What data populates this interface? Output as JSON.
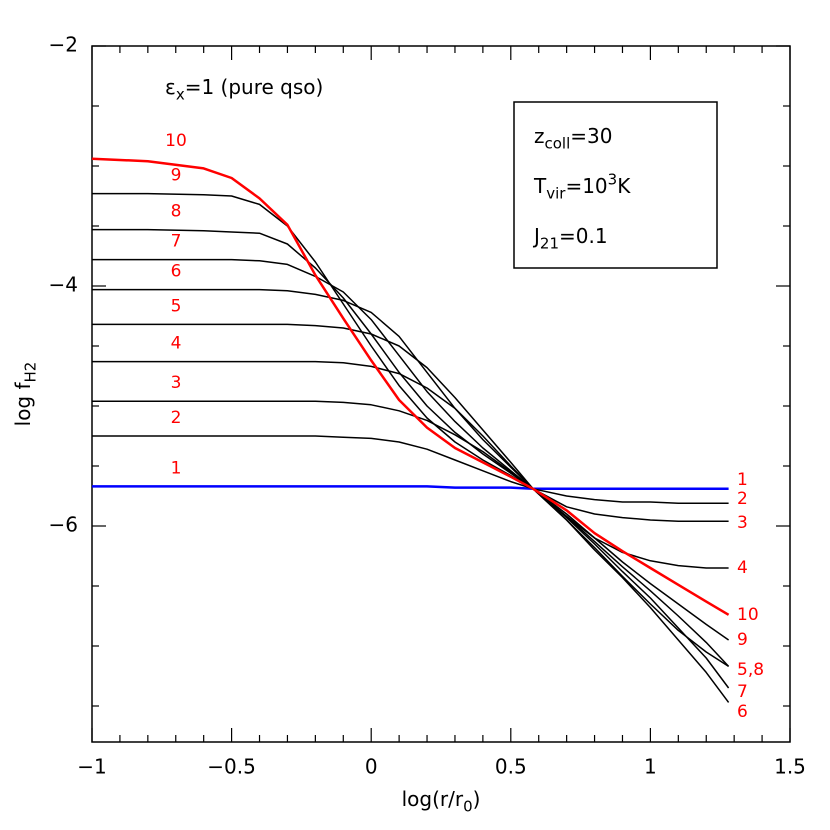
{
  "chart_data": {
    "type": "line",
    "annotation": {
      "base": "ε",
      "sub": "x",
      "tail": "=1 (pure qso)"
    },
    "info_box": [
      {
        "base": "z",
        "sub": "coll",
        "tail": "=30"
      },
      {
        "base": "T",
        "sub": "vir",
        "tail": "=10",
        "sup": "3",
        "end": "K"
      },
      {
        "base": "J",
        "sub": "21",
        "tail": "=0.1"
      }
    ],
    "xlabel": {
      "base": "log(r/r",
      "sub": "0",
      "tail": ")"
    },
    "ylabel": {
      "base": "log f",
      "sub": "H2"
    },
    "xlim": [
      -1,
      1.5
    ],
    "ylim": [
      -7.8,
      -2
    ],
    "xticks": [
      {
        "value": -1,
        "label": "−1"
      },
      {
        "value": -0.5,
        "label": "−0.5"
      },
      0,
      0.5,
      1,
      1.5
    ],
    "yticks": [
      {
        "value": -2,
        "label": "−2"
      },
      {
        "value": -4,
        "label": "−4"
      },
      {
        "value": -6,
        "label": "−6"
      }
    ],
    "xminor_ticks": [
      -0.9,
      -0.8,
      -0.7,
      -0.6,
      -0.4,
      -0.3,
      -0.2,
      -0.1,
      0.1,
      0.2,
      0.3,
      0.4,
      0.6,
      0.7,
      0.8,
      0.9,
      1.1,
      1.2,
      1.3,
      1.4
    ],
    "yminor_ticks": [
      -2.5,
      -3,
      -3.5,
      -4.5,
      -5,
      -5.5,
      -6.5,
      -7,
      -7.5
    ],
    "x": [
      -1,
      -0.8,
      -0.6,
      -0.5,
      -0.4,
      -0.3,
      -0.2,
      -0.1,
      0,
      0.1,
      0.2,
      0.3,
      0.4,
      0.5,
      0.58,
      0.7,
      0.8,
      0.9,
      1.0,
      1.1,
      1.2,
      1.28
    ],
    "series": [
      {
        "name": "1",
        "color": "#0000ff",
        "values": [
          -5.67,
          -5.67,
          -5.67,
          -5.67,
          -5.67,
          -5.67,
          -5.67,
          -5.67,
          -5.67,
          -5.67,
          -5.67,
          -5.68,
          -5.68,
          -5.68,
          -5.69,
          -5.69,
          -5.69,
          -5.69,
          -5.69,
          -5.69,
          -5.69,
          -5.69
        ]
      },
      {
        "name": "2",
        "color": "#000000",
        "values": [
          -5.25,
          -5.25,
          -5.25,
          -5.25,
          -5.25,
          -5.25,
          -5.25,
          -5.26,
          -5.27,
          -5.3,
          -5.36,
          -5.45,
          -5.54,
          -5.63,
          -5.69,
          -5.75,
          -5.78,
          -5.8,
          -5.8,
          -5.81,
          -5.81,
          -5.81
        ]
      },
      {
        "name": "3",
        "color": "#000000",
        "values": [
          -4.96,
          -4.96,
          -4.96,
          -4.96,
          -4.96,
          -4.96,
          -4.96,
          -4.97,
          -4.99,
          -5.04,
          -5.12,
          -5.24,
          -5.38,
          -5.55,
          -5.69,
          -5.84,
          -5.9,
          -5.93,
          -5.95,
          -5.96,
          -5.96,
          -5.96
        ]
      },
      {
        "name": "4",
        "color": "#000000",
        "values": [
          -4.63,
          -4.63,
          -4.63,
          -4.63,
          -4.63,
          -4.63,
          -4.63,
          -4.64,
          -4.67,
          -4.73,
          -4.85,
          -5.02,
          -5.25,
          -5.5,
          -5.69,
          -5.92,
          -6.1,
          -6.22,
          -6.29,
          -6.33,
          -6.35,
          -6.35
        ]
      },
      {
        "name": "5",
        "color": "#000000",
        "values": [
          -4.32,
          -4.32,
          -4.32,
          -4.32,
          -4.32,
          -4.32,
          -4.33,
          -4.35,
          -4.4,
          -4.5,
          -4.68,
          -4.93,
          -5.2,
          -5.47,
          -5.69,
          -5.95,
          -6.18,
          -6.42,
          -6.65,
          -6.87,
          -7.05,
          -7.17
        ]
      },
      {
        "name": "6",
        "color": "#000000",
        "values": [
          -4.03,
          -4.03,
          -4.03,
          -4.03,
          -4.03,
          -4.04,
          -4.07,
          -4.12,
          -4.22,
          -4.42,
          -4.72,
          -5.02,
          -5.28,
          -5.51,
          -5.69,
          -5.95,
          -6.2,
          -6.43,
          -6.68,
          -6.95,
          -7.22,
          -7.47
        ]
      },
      {
        "name": "7",
        "color": "#000000",
        "values": [
          -3.78,
          -3.78,
          -3.78,
          -3.78,
          -3.79,
          -3.82,
          -3.92,
          -4.05,
          -4.28,
          -4.58,
          -4.88,
          -5.13,
          -5.35,
          -5.54,
          -5.69,
          -5.93,
          -6.15,
          -6.38,
          -6.6,
          -6.85,
          -7.1,
          -7.35
        ]
      },
      {
        "name": "8",
        "color": "#000000",
        "values": [
          -3.53,
          -3.53,
          -3.54,
          -3.55,
          -3.56,
          -3.65,
          -3.85,
          -4.1,
          -4.4,
          -4.72,
          -5.0,
          -5.22,
          -5.4,
          -5.56,
          -5.69,
          -5.92,
          -6.13,
          -6.34,
          -6.54,
          -6.75,
          -6.97,
          -7.17
        ]
      },
      {
        "name": "9",
        "color": "#000000",
        "values": [
          -3.23,
          -3.23,
          -3.24,
          -3.25,
          -3.32,
          -3.5,
          -3.8,
          -4.15,
          -4.5,
          -4.83,
          -5.1,
          -5.3,
          -5.45,
          -5.58,
          -5.69,
          -5.9,
          -6.1,
          -6.3,
          -6.48,
          -6.65,
          -6.82,
          -6.95
        ]
      },
      {
        "name": "10",
        "color": "#ff0000",
        "values": [
          -2.94,
          -2.96,
          -3.02,
          -3.1,
          -3.27,
          -3.49,
          -3.91,
          -4.27,
          -4.62,
          -4.95,
          -5.18,
          -5.35,
          -5.47,
          -5.59,
          -5.69,
          -5.87,
          -6.06,
          -6.21,
          -6.35,
          -6.49,
          -6.63,
          -6.74
        ]
      }
    ],
    "end_labels": [
      "1",
      "2",
      "3",
      "4",
      "10",
      "9",
      "5,8",
      "7",
      "6"
    ],
    "label_color": "#ff0000"
  }
}
